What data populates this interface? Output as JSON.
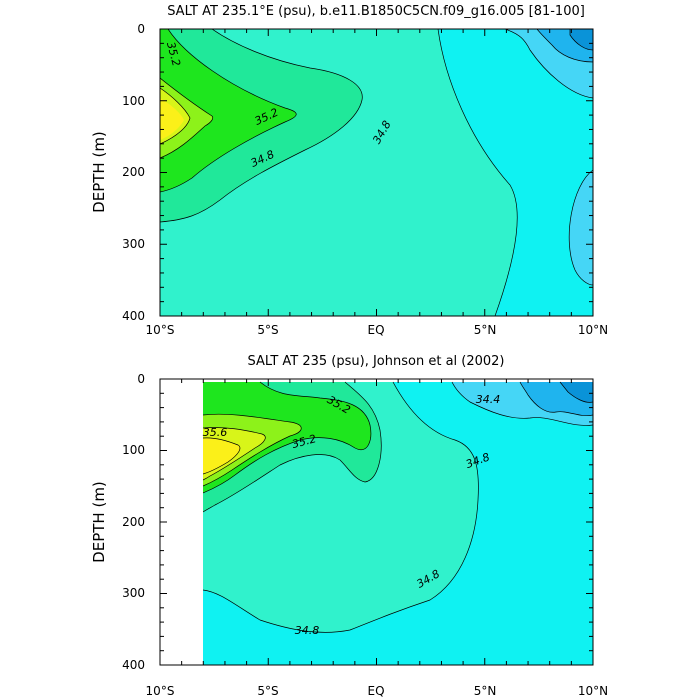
{
  "palette": {
    "34.0": "#0a93d8",
    "34.2": "#1fb4ee",
    "34.4": "#45d6f6",
    "34.6": "#0ff2f2",
    "34.8": "#30f2cc",
    "35.0": "#20e89a",
    "35.2": "#1ee61e",
    "35.4": "#8df21a",
    "35.6": "#d8f519",
    "35.8": "#fbf019"
  },
  "chart_data": [
    {
      "type": "contour",
      "title": "SALT AT 235.1°E (psu), b.e11.B1850C5CN.f09_g16.005 [81-100]",
      "ylabel": "DEPTH (m)",
      "xlim": [
        -10,
        10
      ],
      "ylim": [
        400,
        0
      ],
      "x_tick_labels": [
        "10°S",
        "5°S",
        "EQ",
        "5°N",
        "10°N"
      ],
      "y_tick_labels": [
        "0",
        "100",
        "200",
        "300",
        "400"
      ],
      "contour_labels": [
        "35.2",
        "35.2",
        "34.8",
        "34.8"
      ],
      "levels": [
        34.0,
        34.2,
        34.4,
        34.6,
        34.8,
        35.0,
        35.2,
        35.4,
        35.6,
        35.8
      ]
    },
    {
      "type": "contour",
      "title": "SALT AT 235 (psu), Johnson et al (2002)",
      "ylabel": "DEPTH (m)",
      "xlim": [
        -10,
        10
      ],
      "ylim": [
        400,
        0
      ],
      "data_x_range": [
        -8,
        10
      ],
      "x_tick_labels": [
        "10°S",
        "5°S",
        "EQ",
        "5°N",
        "10°N"
      ],
      "y_tick_labels": [
        "0",
        "100",
        "200",
        "300",
        "400"
      ],
      "contour_labels": [
        "35.6",
        "35.2",
        "35.2",
        "34.4",
        "34.8",
        "34.8",
        "34.8"
      ],
      "levels": [
        34.0,
        34.2,
        34.4,
        34.6,
        34.8,
        35.0,
        35.2,
        35.4,
        35.6,
        35.8
      ]
    }
  ]
}
